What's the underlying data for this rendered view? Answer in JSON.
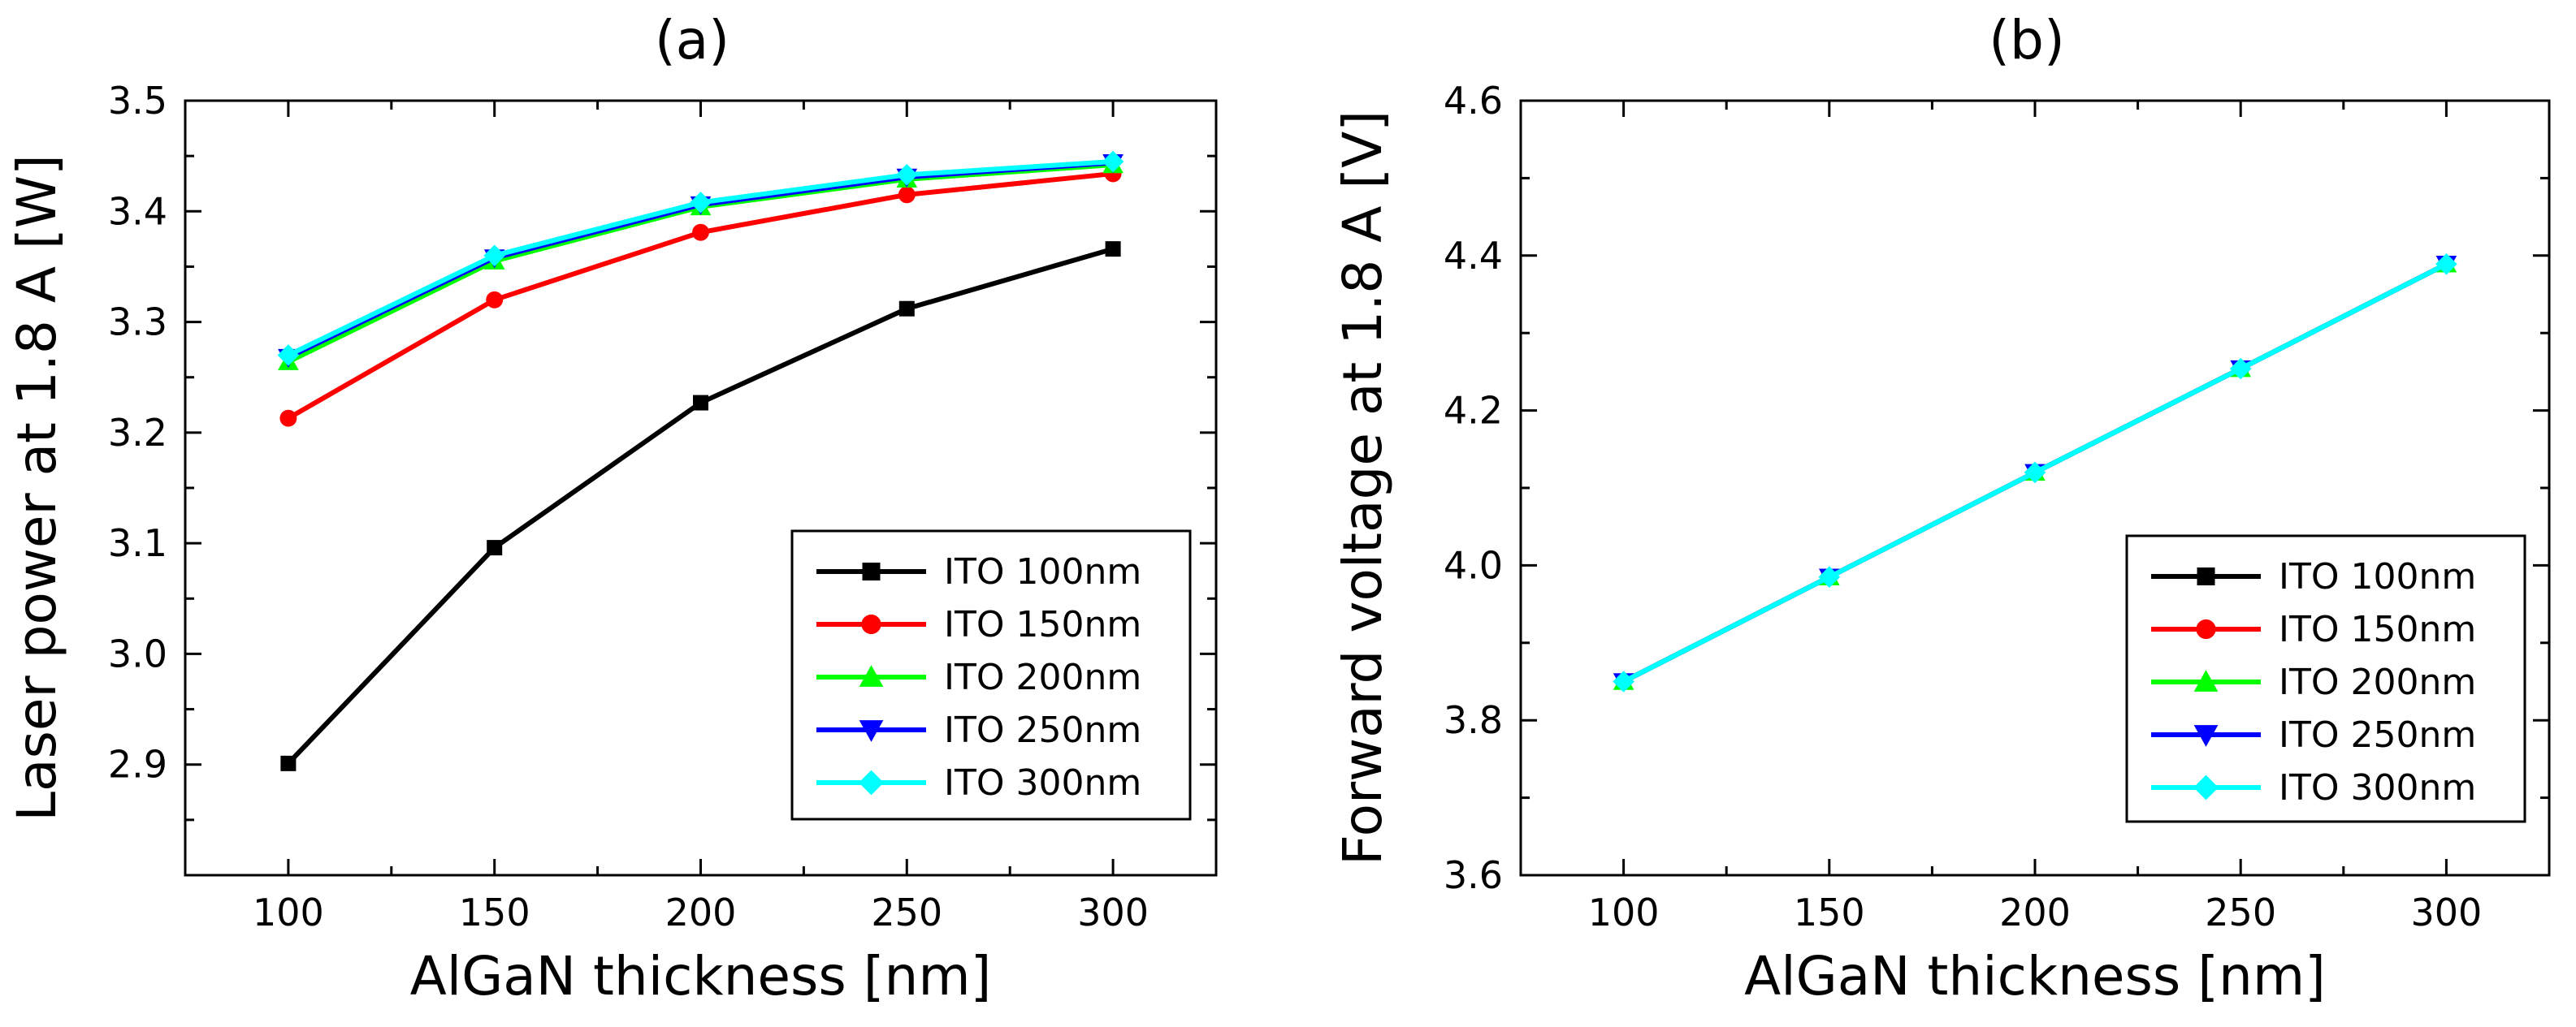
{
  "chart_data": [
    {
      "type": "line",
      "title": "(a)",
      "xlabel": "AlGaN thickness [nm]",
      "ylabel": "Laser power at 1.8 A [W]",
      "xlim": [
        75,
        325
      ],
      "ylim": [
        2.8,
        3.5
      ],
      "xticks": [
        100,
        150,
        200,
        250,
        300
      ],
      "xtick_labels": [
        "100",
        "150",
        "200",
        "250",
        "300"
      ],
      "yticks": [
        2.9,
        3.0,
        3.1,
        3.2,
        3.3,
        3.4,
        3.5
      ],
      "ytick_labels": [
        "2.9",
        "3.0",
        "3.1",
        "3.2",
        "3.3",
        "3.4",
        "3.5"
      ],
      "legend_position": "bottom-right",
      "x": [
        100,
        150,
        200,
        250,
        300
      ],
      "series": [
        {
          "name": "ITO 100nm",
          "color": "#000000",
          "marker": "square",
          "values": [
            2.901,
            3.096,
            3.227,
            3.312,
            3.366
          ]
        },
        {
          "name": "ITO 150nm",
          "color": "#ff0000",
          "marker": "circle",
          "values": [
            3.213,
            3.32,
            3.381,
            3.415,
            3.434
          ]
        },
        {
          "name": "ITO 200nm",
          "color": "#00ff00",
          "marker": "triangle-up",
          "values": [
            3.264,
            3.355,
            3.404,
            3.429,
            3.442
          ]
        },
        {
          "name": "ITO 250nm",
          "color": "#0000ff",
          "marker": "triangle-down",
          "values": [
            3.268,
            3.358,
            3.406,
            3.431,
            3.444
          ]
        },
        {
          "name": "ITO 300nm",
          "color": "#00ffff",
          "marker": "diamond",
          "values": [
            3.27,
            3.36,
            3.408,
            3.433,
            3.445
          ]
        }
      ]
    },
    {
      "type": "line",
      "title": "(b)",
      "xlabel": "AlGaN thickness [nm]",
      "ylabel": "Forward voltage at 1.8 A [V]",
      "xlim": [
        75,
        325
      ],
      "ylim": [
        3.6,
        4.6
      ],
      "xticks": [
        100,
        150,
        200,
        250,
        300
      ],
      "xtick_labels": [
        "100",
        "150",
        "200",
        "250",
        "300"
      ],
      "yticks": [
        3.6,
        3.8,
        4.0,
        4.2,
        4.4,
        4.6
      ],
      "ytick_labels": [
        "3.6",
        "3.8",
        "4.0",
        "4.2",
        "4.4",
        "4.6"
      ],
      "legend_position": "bottom-right",
      "x": [
        100,
        150,
        200,
        250,
        300
      ],
      "series": [
        {
          "name": "ITO 100nm",
          "color": "#000000",
          "marker": "square",
          "values": [
            3.85,
            3.985,
            4.12,
            4.254,
            4.389
          ]
        },
        {
          "name": "ITO 150nm",
          "color": "#ff0000",
          "marker": "circle",
          "values": [
            3.85,
            3.985,
            4.12,
            4.254,
            4.389
          ]
        },
        {
          "name": "ITO 200nm",
          "color": "#00ff00",
          "marker": "triangle-up",
          "values": [
            3.85,
            3.985,
            4.12,
            4.254,
            4.389
          ]
        },
        {
          "name": "ITO 250nm",
          "color": "#0000ff",
          "marker": "triangle-down",
          "values": [
            3.85,
            3.985,
            4.12,
            4.254,
            4.389
          ]
        },
        {
          "name": "ITO 300nm",
          "color": "#00ffff",
          "marker": "diamond",
          "values": [
            3.85,
            3.985,
            4.12,
            4.254,
            4.389
          ]
        }
      ]
    }
  ]
}
